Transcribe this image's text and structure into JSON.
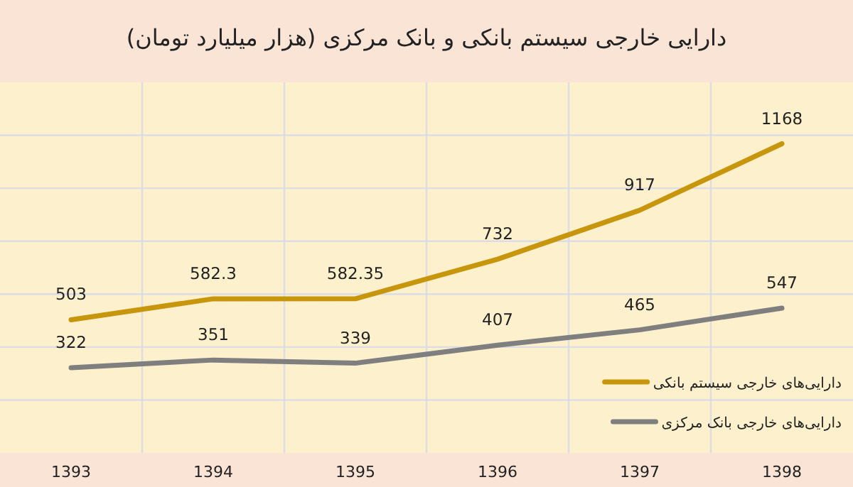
{
  "chart_data": {
    "type": "line",
    "title": "دارایی خارجی سیستم بانکی و بانک مرکزی (هزار میلیارد تومان)",
    "categories": [
      "1393",
      "1394",
      "1395",
      "1396",
      "1397",
      "1398"
    ],
    "series": [
      {
        "name": "دارایی‌های خارجی سیستم بانکی",
        "color": "#c8960c",
        "values": [
          503,
          582.3,
          582.35,
          732,
          917,
          1168
        ]
      },
      {
        "name": "دارایی‌های خارجی بانک مرکزی",
        "color": "#7f7f7f",
        "values": [
          322,
          351,
          339,
          407,
          465,
          547
        ]
      }
    ],
    "ylim": [
      0,
      1400
    ],
    "yticks": [
      {
        "value": 200,
        "label": null
      },
      {
        "value": 400,
        "label": null
      },
      {
        "value": 600,
        "label": null
      },
      {
        "value": 800,
        "label": null
      },
      {
        "value": 1000,
        "label": null
      },
      {
        "value": 1200,
        "label": null
      }
    ],
    "tick_labels": "x",
    "grid": true,
    "data_labels": true,
    "legend": "bottom right",
    "marker": "none",
    "line_style": "solid"
  }
}
